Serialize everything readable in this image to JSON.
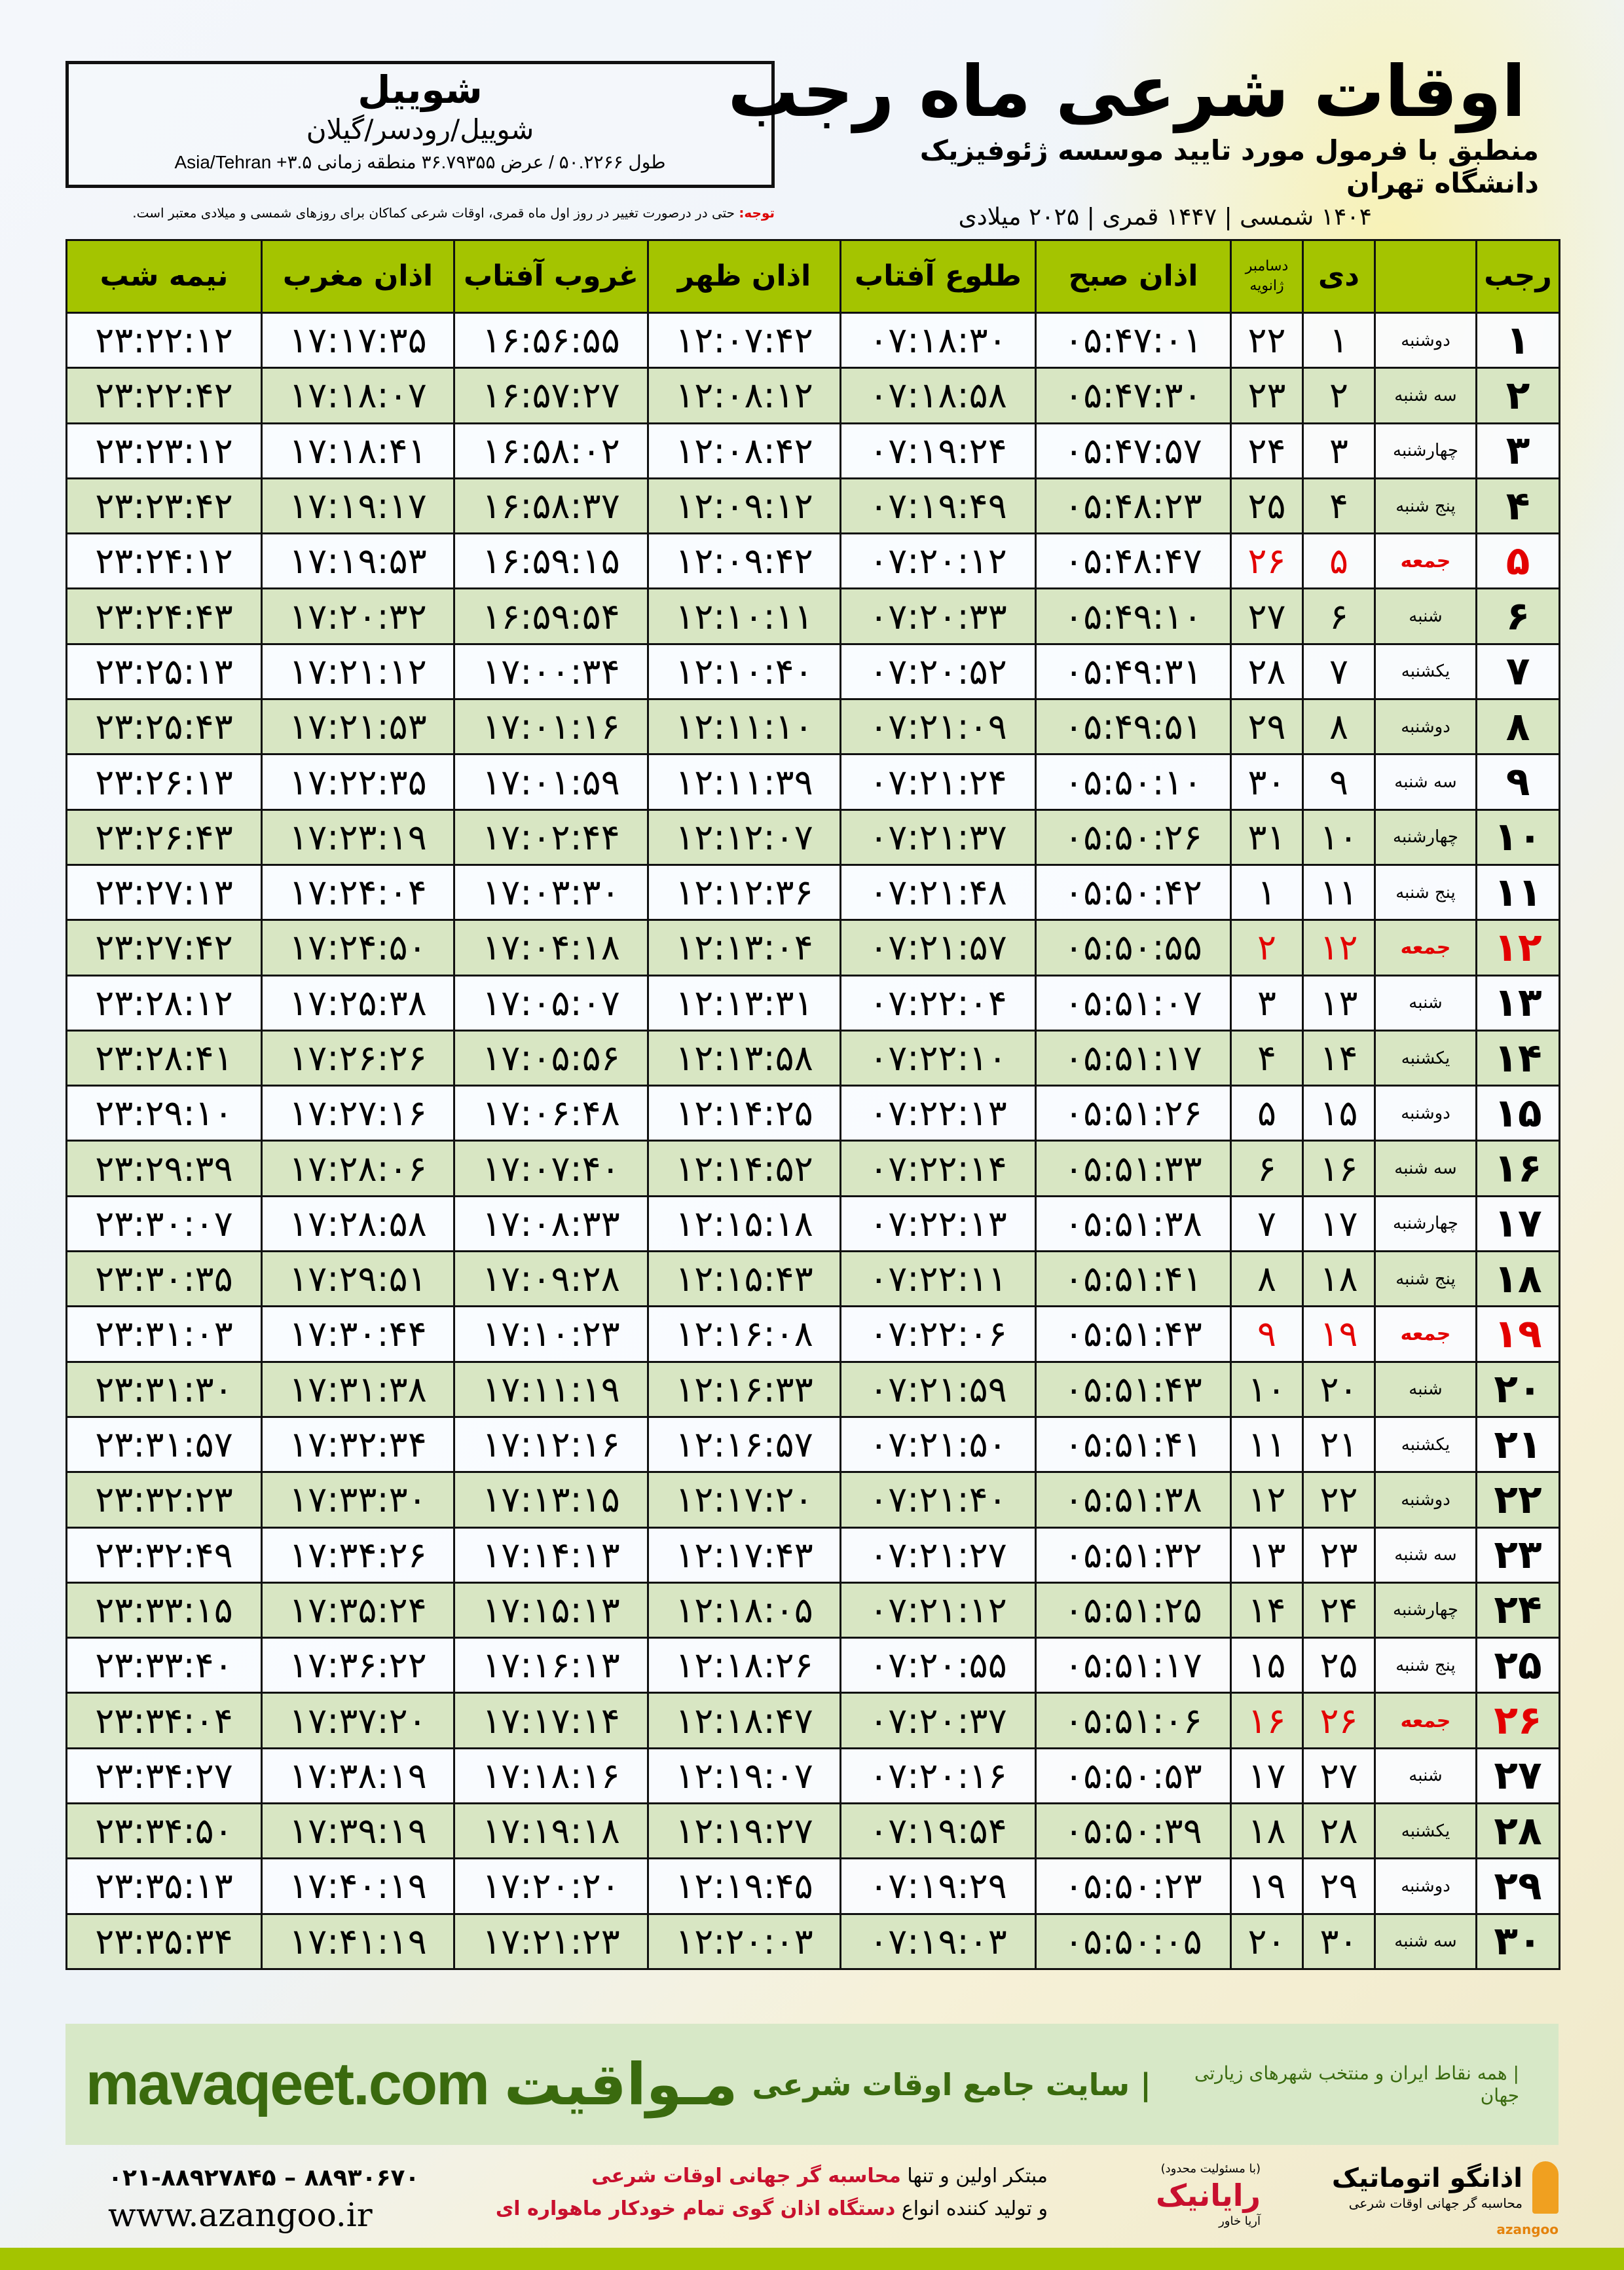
{
  "location": {
    "city": "شوییل",
    "path": "شوییل/رودسر/گیلان",
    "coords": "طول ۵۰.۲۲۶۶ / عرض ۳۶.۷۹۳۵۵ منطقه زمانی ۳.۵+ Asia/Tehran"
  },
  "header": {
    "title": "اوقات شرعی ماه رجب",
    "subtitle": "منطبق با فرمول مورد تایید موسسه ژئوفیزیک دانشگاه تهران",
    "dates": "۱۴۰۴ شمسی | ۱۴۴۷ قمری | ۲۰۲۵ میلادی"
  },
  "notice": {
    "label": "توجه:",
    "text": " حتی در درصورت تغییر در روز اول ماه قمری، اوقات شرعی کماکان برای روزهای شمسی و میلادی معتبر است."
  },
  "table": {
    "columns": [
      "رجب",
      "",
      "دی",
      "دسامبر ژانویه",
      "اذان صبح",
      "طلوع آفتاب",
      "اذان ظهر",
      "غروب آفتاب",
      "اذان مغرب",
      "نیمه شب"
    ],
    "rows": [
      [
        "۱",
        "دوشنبه",
        "۱",
        "۲۲",
        "۰۵:۴۷:۰۱",
        "۰۷:۱۸:۳۰",
        "۱۲:۰۷:۴۲",
        "۱۶:۵۶:۵۵",
        "۱۷:۱۷:۳۵",
        "۲۳:۲۲:۱۲"
      ],
      [
        "۲",
        "سه شنبه",
        "۲",
        "۲۳",
        "۰۵:۴۷:۳۰",
        "۰۷:۱۸:۵۸",
        "۱۲:۰۸:۱۲",
        "۱۶:۵۷:۲۷",
        "۱۷:۱۸:۰۷",
        "۲۳:۲۲:۴۲"
      ],
      [
        "۳",
        "چهارشنبه",
        "۳",
        "۲۴",
        "۰۵:۴۷:۵۷",
        "۰۷:۱۹:۲۴",
        "۱۲:۰۸:۴۲",
        "۱۶:۵۸:۰۲",
        "۱۷:۱۸:۴۱",
        "۲۳:۲۳:۱۲"
      ],
      [
        "۴",
        "پنج شنبه",
        "۴",
        "۲۵",
        "۰۵:۴۸:۲۳",
        "۰۷:۱۹:۴۹",
        "۱۲:۰۹:۱۲",
        "۱۶:۵۸:۳۷",
        "۱۷:۱۹:۱۷",
        "۲۳:۲۳:۴۲"
      ],
      [
        "۵",
        "جمعه",
        "۵",
        "۲۶",
        "۰۵:۴۸:۴۷",
        "۰۷:۲۰:۱۲",
        "۱۲:۰۹:۴۲",
        "۱۶:۵۹:۱۵",
        "۱۷:۱۹:۵۳",
        "۲۳:۲۴:۱۲"
      ],
      [
        "۶",
        "شنبه",
        "۶",
        "۲۷",
        "۰۵:۴۹:۱۰",
        "۰۷:۲۰:۳۳",
        "۱۲:۱۰:۱۱",
        "۱۶:۵۹:۵۴",
        "۱۷:۲۰:۳۲",
        "۲۳:۲۴:۴۳"
      ],
      [
        "۷",
        "یکشنبه",
        "۷",
        "۲۸",
        "۰۵:۴۹:۳۱",
        "۰۷:۲۰:۵۲",
        "۱۲:۱۰:۴۰",
        "۱۷:۰۰:۳۴",
        "۱۷:۲۱:۱۲",
        "۲۳:۲۵:۱۳"
      ],
      [
        "۸",
        "دوشنبه",
        "۸",
        "۲۹",
        "۰۵:۴۹:۵۱",
        "۰۷:۲۱:۰۹",
        "۱۲:۱۱:۱۰",
        "۱۷:۰۱:۱۶",
        "۱۷:۲۱:۵۳",
        "۲۳:۲۵:۴۳"
      ],
      [
        "۹",
        "سه شنبه",
        "۹",
        "۳۰",
        "۰۵:۵۰:۱۰",
        "۰۷:۲۱:۲۴",
        "۱۲:۱۱:۳۹",
        "۱۷:۰۱:۵۹",
        "۱۷:۲۲:۳۵",
        "۲۳:۲۶:۱۳"
      ],
      [
        "۱۰",
        "چهارشنبه",
        "۱۰",
        "۳۱",
        "۰۵:۵۰:۲۶",
        "۰۷:۲۱:۳۷",
        "۱۲:۱۲:۰۷",
        "۱۷:۰۲:۴۴",
        "۱۷:۲۳:۱۹",
        "۲۳:۲۶:۴۳"
      ],
      [
        "۱۱",
        "پنج شنبه",
        "۱۱",
        "۱",
        "۰۵:۵۰:۴۲",
        "۰۷:۲۱:۴۸",
        "۱۲:۱۲:۳۶",
        "۱۷:۰۳:۳۰",
        "۱۷:۲۴:۰۴",
        "۲۳:۲۷:۱۳"
      ],
      [
        "۱۲",
        "جمعه",
        "۱۲",
        "۲",
        "۰۵:۵۰:۵۵",
        "۰۷:۲۱:۵۷",
        "۱۲:۱۳:۰۴",
        "۱۷:۰۴:۱۸",
        "۱۷:۲۴:۵۰",
        "۲۳:۲۷:۴۲"
      ],
      [
        "۱۳",
        "شنبه",
        "۱۳",
        "۳",
        "۰۵:۵۱:۰۷",
        "۰۷:۲۲:۰۴",
        "۱۲:۱۳:۳۱",
        "۱۷:۰۵:۰۷",
        "۱۷:۲۵:۳۸",
        "۲۳:۲۸:۱۲"
      ],
      [
        "۱۴",
        "یکشنبه",
        "۱۴",
        "۴",
        "۰۵:۵۱:۱۷",
        "۰۷:۲۲:۱۰",
        "۱۲:۱۳:۵۸",
        "۱۷:۰۵:۵۶",
        "۱۷:۲۶:۲۶",
        "۲۳:۲۸:۴۱"
      ],
      [
        "۱۵",
        "دوشنبه",
        "۱۵",
        "۵",
        "۰۵:۵۱:۲۶",
        "۰۷:۲۲:۱۳",
        "۱۲:۱۴:۲۵",
        "۱۷:۰۶:۴۸",
        "۱۷:۲۷:۱۶",
        "۲۳:۲۹:۱۰"
      ],
      [
        "۱۶",
        "سه شنبه",
        "۱۶",
        "۶",
        "۰۵:۵۱:۳۳",
        "۰۷:۲۲:۱۴",
        "۱۲:۱۴:۵۲",
        "۱۷:۰۷:۴۰",
        "۱۷:۲۸:۰۶",
        "۲۳:۲۹:۳۹"
      ],
      [
        "۱۷",
        "چهارشنبه",
        "۱۷",
        "۷",
        "۰۵:۵۱:۳۸",
        "۰۷:۲۲:۱۳",
        "۱۲:۱۵:۱۸",
        "۱۷:۰۸:۳۳",
        "۱۷:۲۸:۵۸",
        "۲۳:۳۰:۰۷"
      ],
      [
        "۱۸",
        "پنج شنبه",
        "۱۸",
        "۸",
        "۰۵:۵۱:۴۱",
        "۰۷:۲۲:۱۱",
        "۱۲:۱۵:۴۳",
        "۱۷:۰۹:۲۸",
        "۱۷:۲۹:۵۱",
        "۲۳:۳۰:۳۵"
      ],
      [
        "۱۹",
        "جمعه",
        "۱۹",
        "۹",
        "۰۵:۵۱:۴۳",
        "۰۷:۲۲:۰۶",
        "۱۲:۱۶:۰۸",
        "۱۷:۱۰:۲۳",
        "۱۷:۳۰:۴۴",
        "۲۳:۳۱:۰۳"
      ],
      [
        "۲۰",
        "شنبه",
        "۲۰",
        "۱۰",
        "۰۵:۵۱:۴۳",
        "۰۷:۲۱:۵۹",
        "۱۲:۱۶:۳۳",
        "۱۷:۱۱:۱۹",
        "۱۷:۳۱:۳۸",
        "۲۳:۳۱:۳۰"
      ],
      [
        "۲۱",
        "یکشنبه",
        "۲۱",
        "۱۱",
        "۰۵:۵۱:۴۱",
        "۰۷:۲۱:۵۰",
        "۱۲:۱۶:۵۷",
        "۱۷:۱۲:۱۶",
        "۱۷:۳۲:۳۴",
        "۲۳:۳۱:۵۷"
      ],
      [
        "۲۲",
        "دوشنبه",
        "۲۲",
        "۱۲",
        "۰۵:۵۱:۳۸",
        "۰۷:۲۱:۴۰",
        "۱۲:۱۷:۲۰",
        "۱۷:۱۳:۱۵",
        "۱۷:۳۳:۳۰",
        "۲۳:۳۲:۲۳"
      ],
      [
        "۲۳",
        "سه شنبه",
        "۲۳",
        "۱۳",
        "۰۵:۵۱:۳۲",
        "۰۷:۲۱:۲۷",
        "۱۲:۱۷:۴۳",
        "۱۷:۱۴:۱۳",
        "۱۷:۳۴:۲۶",
        "۲۳:۳۲:۴۹"
      ],
      [
        "۲۴",
        "چهارشنبه",
        "۲۴",
        "۱۴",
        "۰۵:۵۱:۲۵",
        "۰۷:۲۱:۱۲",
        "۱۲:۱۸:۰۵",
        "۱۷:۱۵:۱۳",
        "۱۷:۳۵:۲۴",
        "۲۳:۳۳:۱۵"
      ],
      [
        "۲۵",
        "پنج شنبه",
        "۲۵",
        "۱۵",
        "۰۵:۵۱:۱۷",
        "۰۷:۲۰:۵۵",
        "۱۲:۱۸:۲۶",
        "۱۷:۱۶:۱۳",
        "۱۷:۳۶:۲۲",
        "۲۳:۳۳:۴۰"
      ],
      [
        "۲۶",
        "جمعه",
        "۲۶",
        "۱۶",
        "۰۵:۵۱:۰۶",
        "۰۷:۲۰:۳۷",
        "۱۲:۱۸:۴۷",
        "۱۷:۱۷:۱۴",
        "۱۷:۳۷:۲۰",
        "۲۳:۳۴:۰۴"
      ],
      [
        "۲۷",
        "شنبه",
        "۲۷",
        "۱۷",
        "۰۵:۵۰:۵۳",
        "۰۷:۲۰:۱۶",
        "۱۲:۱۹:۰۷",
        "۱۷:۱۸:۱۶",
        "۱۷:۳۸:۱۹",
        "۲۳:۳۴:۲۷"
      ],
      [
        "۲۸",
        "یکشنبه",
        "۲۸",
        "۱۸",
        "۰۵:۵۰:۳۹",
        "۰۷:۱۹:۵۴",
        "۱۲:۱۹:۲۷",
        "۱۷:۱۹:۱۸",
        "۱۷:۳۹:۱۹",
        "۲۳:۳۴:۵۰"
      ],
      [
        "۲۹",
        "دوشنبه",
        "۲۹",
        "۱۹",
        "۰۵:۵۰:۲۳",
        "۰۷:۱۹:۲۹",
        "۱۲:۱۹:۴۵",
        "۱۷:۲۰:۲۰",
        "۱۷:۴۰:۱۹",
        "۲۳:۳۵:۱۳"
      ],
      [
        "۳۰",
        "سه شنبه",
        "۳۰",
        "۲۰",
        "۰۵:۵۰:۰۵",
        "۰۷:۱۹:۰۳",
        "۱۲:۲۰:۰۳",
        "۱۷:۲۱:۲۳",
        "۱۷:۴۱:۱۹",
        "۲۳:۳۵:۳۴"
      ]
    ],
    "friday_color": "#e30000"
  },
  "footer": {
    "brand": "مـواقیت",
    "slogan": "| سایت جامع اوقات شرعی",
    "sub": "| همه نقاط ایران و منتخب شهرهای زیارتی جهان",
    "site": "mavaqeet.com",
    "promo1_a": "مبتکر اولین و تنها ",
    "promo1_b": "محاسبه گر جهانی اوقات شرعی",
    "promo2_a": "و تولید کننده انواع ",
    "promo2_b": "دستگاه اذان گوی تمام خودکار ماهواره ای",
    "phone": "۰۲۱-۸۸۹۲۷۸۴۵ – ۸۸۹۳۰۶۷۰",
    "web": "www.azangoo.ir",
    "logo_rayanik": "رایانیک",
    "logo_rayanik_sub": "آریا خاور",
    "logo_rayanik_note": "(با مسئولیت محدود)",
    "logo_azangoo": "اذانگو اتوماتیک",
    "logo_azangoo_sub": "محاسبه گر جهانی اوقات شرعی",
    "logo_azangoo_en": "azangoo"
  },
  "colors": {
    "header_green": "#a4c400",
    "row_green": "#d8e6c3",
    "brand_green": "#3a6a0e",
    "accent_red": "#c8102e"
  }
}
